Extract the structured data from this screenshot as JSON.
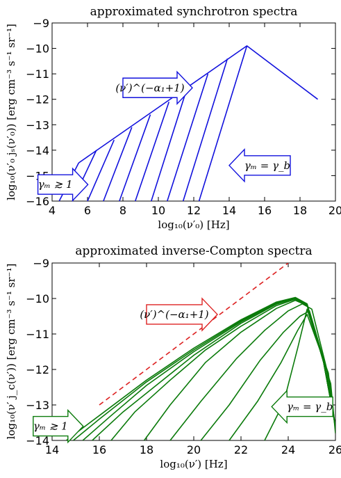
{
  "chart_data": [
    {
      "type": "line",
      "title": "approximated synchrotron spectra",
      "xlabel": "log₁₀(ν′₀) [Hz]",
      "ylabel": "log₁₀(ν′₀ jₛ(ν′₀)) [erg cm⁻³ s⁻¹ sr⁻¹]",
      "xlim": [
        4,
        20
      ],
      "ylim": [
        -16,
        -9
      ],
      "x_ticks": [
        "4",
        "6",
        "8",
        "10",
        "12",
        "14",
        "16",
        "18",
        "20"
      ],
      "y_ticks": [
        "−9",
        "−10",
        "−11",
        "−12",
        "−13",
        "−14",
        "−15",
        "−16"
      ],
      "colors": {
        "curves": "#1111dd",
        "arrow_edge": "#1111dd"
      },
      "series": [
        {
          "x": [
            5.5,
            15.0,
            19.0
          ],
          "y": [
            -14.5,
            -9.9,
            -12.0
          ]
        },
        {
          "x": [
            4.4,
            5.5
          ],
          "y": [
            -16.0,
            -14.5
          ]
        },
        {
          "x": [
            5.15,
            6.5
          ],
          "y": [
            -16.0,
            -14.0
          ]
        },
        {
          "x": [
            6.0,
            7.5
          ],
          "y": [
            -16.0,
            -13.6
          ]
        },
        {
          "x": [
            6.9,
            8.5
          ],
          "y": [
            -16.0,
            -13.1
          ]
        },
        {
          "x": [
            7.8,
            9.55
          ],
          "y": [
            -16.0,
            -12.6
          ]
        },
        {
          "x": [
            8.7,
            10.6
          ],
          "y": [
            -16.0,
            -12.1
          ]
        },
        {
          "x": [
            9.6,
            11.65
          ],
          "y": [
            -16.0,
            -11.5
          ]
        },
        {
          "x": [
            10.5,
            12.8
          ],
          "y": [
            -16.0,
            -11.0
          ]
        },
        {
          "x": [
            11.4,
            13.9
          ],
          "y": [
            -16.0,
            -10.4
          ]
        },
        {
          "x": [
            12.3,
            15.0
          ],
          "y": [
            -16.0,
            -9.9
          ]
        }
      ],
      "annotations": [
        {
          "text": "(ν′)^(−α₁+1)",
          "arrow": "right",
          "x": 8.0,
          "y": -11.55
        },
        {
          "text": "γₘ = γ_b",
          "arrow": "left",
          "x": 14.0,
          "y": -14.6
        },
        {
          "text": "γₘ ≳ 1",
          "arrow": "right",
          "x": 3.2,
          "y": -15.35
        }
      ]
    },
    {
      "type": "line",
      "title": "approximated inverse-Compton spectra",
      "xlabel": "log₁₀(ν′) [Hz]",
      "ylabel": "log₁₀(ν′ j_c(ν′)) [erg cm⁻³ s⁻¹ sr⁻¹]",
      "xlim": [
        14,
        26
      ],
      "ylim": [
        -14,
        -9
      ],
      "x_ticks": [
        "14",
        "16",
        "18",
        "20",
        "22",
        "24",
        "26"
      ],
      "y_ticks": [
        "−9",
        "−10",
        "−11",
        "−12",
        "−13",
        "−14"
      ],
      "colors": {
        "curves": "#0a7a0a",
        "dashed": "#dd2222"
      },
      "dashed_line": {
        "x": [
          16.0,
          24.0
        ],
        "y": [
          -13.0,
          -9.0
        ]
      },
      "series": [
        {
          "x": [
            14.6,
            16.0,
            18.0,
            20.0,
            22.0,
            23.5,
            24.3,
            24.8,
            25.5,
            26.0
          ],
          "y": [
            -14.0,
            -13.3,
            -12.3,
            -11.4,
            -10.6,
            -10.1,
            -9.97,
            -10.15,
            -11.8,
            -13.6
          ]
        },
        {
          "x": [
            14.9,
            16.0,
            18.0,
            20.0,
            22.0,
            23.5,
            24.3,
            24.8,
            25.5,
            26.0
          ],
          "y": [
            -14.0,
            -13.4,
            -12.35,
            -11.45,
            -10.63,
            -10.12,
            -9.98,
            -10.16,
            -11.8,
            -13.6
          ]
        },
        {
          "x": [
            15.3,
            16.5,
            18.0,
            20.0,
            22.0,
            23.5,
            24.3,
            24.8,
            25.5,
            26.0
          ],
          "y": [
            -14.0,
            -13.3,
            -12.45,
            -11.5,
            -10.66,
            -10.14,
            -9.99,
            -10.17,
            -11.8,
            -13.6
          ]
        },
        {
          "x": [
            15.7,
            17.0,
            18.5,
            20.0,
            22.0,
            23.5,
            24.3,
            24.8,
            25.5,
            26.0
          ],
          "y": [
            -14.0,
            -13.2,
            -12.4,
            -11.6,
            -10.7,
            -10.16,
            -10.0,
            -10.18,
            -11.8,
            -13.6
          ]
        },
        {
          "x": [
            16.5,
            17.5,
            19.0,
            20.5,
            22.0,
            23.5,
            24.3,
            24.8,
            25.5,
            26.0
          ],
          "y": [
            -14.0,
            -13.2,
            -12.3,
            -11.45,
            -10.78,
            -10.2,
            -10.02,
            -10.19,
            -11.8,
            -13.6
          ]
        },
        {
          "x": [
            17.9,
            19.0,
            20.5,
            22.0,
            23.5,
            24.3,
            24.8,
            25.5,
            26.0
          ],
          "y": [
            -14.0,
            -13.0,
            -11.8,
            -10.95,
            -10.28,
            -10.05,
            -10.2,
            -11.8,
            -13.6
          ]
        },
        {
          "x": [
            19.0,
            20.3,
            21.8,
            23.0,
            24.0,
            24.6,
            25.0,
            25.6,
            26.0
          ],
          "y": [
            -14.0,
            -12.9,
            -11.7,
            -10.9,
            -10.35,
            -10.15,
            -10.3,
            -11.9,
            -13.6
          ]
        },
        {
          "x": [
            20.3,
            21.5,
            22.8,
            23.8,
            24.5,
            24.9,
            25.6,
            26.0
          ],
          "y": [
            -14.0,
            -13.0,
            -11.75,
            -10.95,
            -10.5,
            -10.35,
            -11.95,
            -13.65
          ]
        },
        {
          "x": [
            21.5,
            22.7,
            23.7,
            24.4,
            24.8,
            25.7,
            26.0
          ],
          "y": [
            -14.0,
            -12.9,
            -11.8,
            -10.9,
            -10.45,
            -12.1,
            -13.7
          ]
        },
        {
          "x": [
            23.0,
            23.8,
            24.4,
            24.8,
            25.8,
            26.0
          ],
          "y": [
            -14.0,
            -12.95,
            -11.4,
            -10.3,
            -12.4,
            -13.8
          ]
        }
      ],
      "annotations": [
        {
          "text": "(ν′)^(−α₁+1)",
          "arrow": "right",
          "x": 18.0,
          "y": -10.45
        },
        {
          "text": "γₘ = γ_b",
          "arrow": "left",
          "x": 23.3,
          "y": -13.05
        },
        {
          "text": "γₘ ≳ 1",
          "arrow": "right",
          "x": 13.2,
          "y": -13.6
        }
      ]
    }
  ]
}
